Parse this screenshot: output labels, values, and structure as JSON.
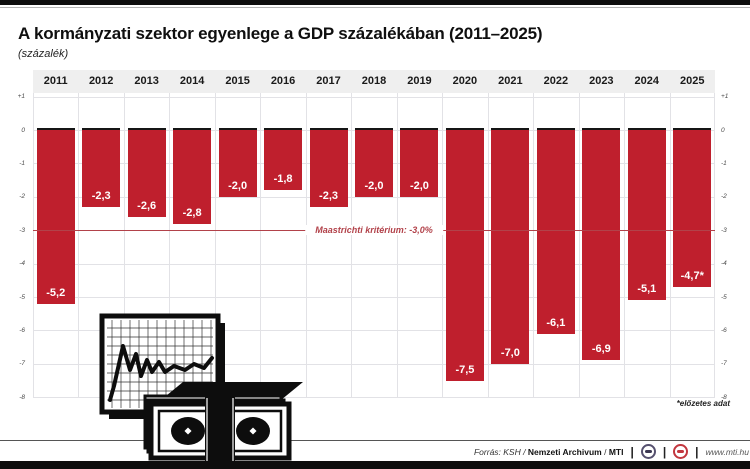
{
  "header": {
    "title": "A kormányzati szektor egyenlege a GDP százalékában (2011–2025)",
    "subtitle": "(százalék)"
  },
  "chart_data": {
    "type": "bar",
    "title": "A kormányzati szektor egyenlege a GDP százalékában (2011–2025)",
    "ylabel": "százalék",
    "categories": [
      "2011",
      "2012",
      "2013",
      "2014",
      "2015",
      "2016",
      "2017",
      "2018",
      "2019",
      "2020",
      "2021",
      "2022",
      "2023",
      "2024",
      "2025"
    ],
    "values": [
      -5.2,
      -2.3,
      -2.6,
      -2.8,
      -2.0,
      -1.8,
      -2.3,
      -2.0,
      -2.0,
      -7.5,
      -7.0,
      -6.1,
      -6.9,
      -5.1,
      -4.7
    ],
    "bar_labels": [
      "-5,2",
      "-2,3",
      "-2,6",
      "-2,8",
      "-2,0",
      "-1,8",
      "-2,3",
      "-2,0",
      "-2,0",
      "-7,5",
      "-7,0",
      "-6,1",
      "-6,9",
      "-5,1",
      "-4,7*"
    ],
    "ylim": [
      1.1,
      -8
    ],
    "ytick_values": [
      1,
      0,
      -1,
      -2,
      -3,
      -4,
      -5,
      -6,
      -7,
      -8
    ],
    "ytick_labels": [
      "+1",
      "0",
      "-1",
      "-2",
      "-3",
      "-4",
      "-5",
      "-6",
      "-7",
      "-8"
    ],
    "grid": true,
    "reference_line": {
      "value": -3.0,
      "label": "Maastrichti kritérium: -3,0%"
    },
    "colors": {
      "bar": "#bf1f2d",
      "bar_top_border": "#151515",
      "reference": "#b2424a",
      "gridline": "#e2e2e6",
      "year_strip_bg": "#efefef"
    }
  },
  "footnote": "*előzetes adat",
  "footer": {
    "source_prefix": "Forrás: KSH /",
    "source_bold1": "Nemzeti Archivum",
    "source_sep": "/",
    "source_bold2": "MTI",
    "pipe": "|",
    "url": "www.mti.hu",
    "logos": [
      {
        "name": "mtva-logo",
        "ring": "#55506e",
        "pill": "#3c3852"
      },
      {
        "name": "mti-logo",
        "ring": "#c2363e",
        "pill": "#c2363e"
      }
    ]
  },
  "illustration": {
    "name": "chart-and-money-pictogram"
  }
}
